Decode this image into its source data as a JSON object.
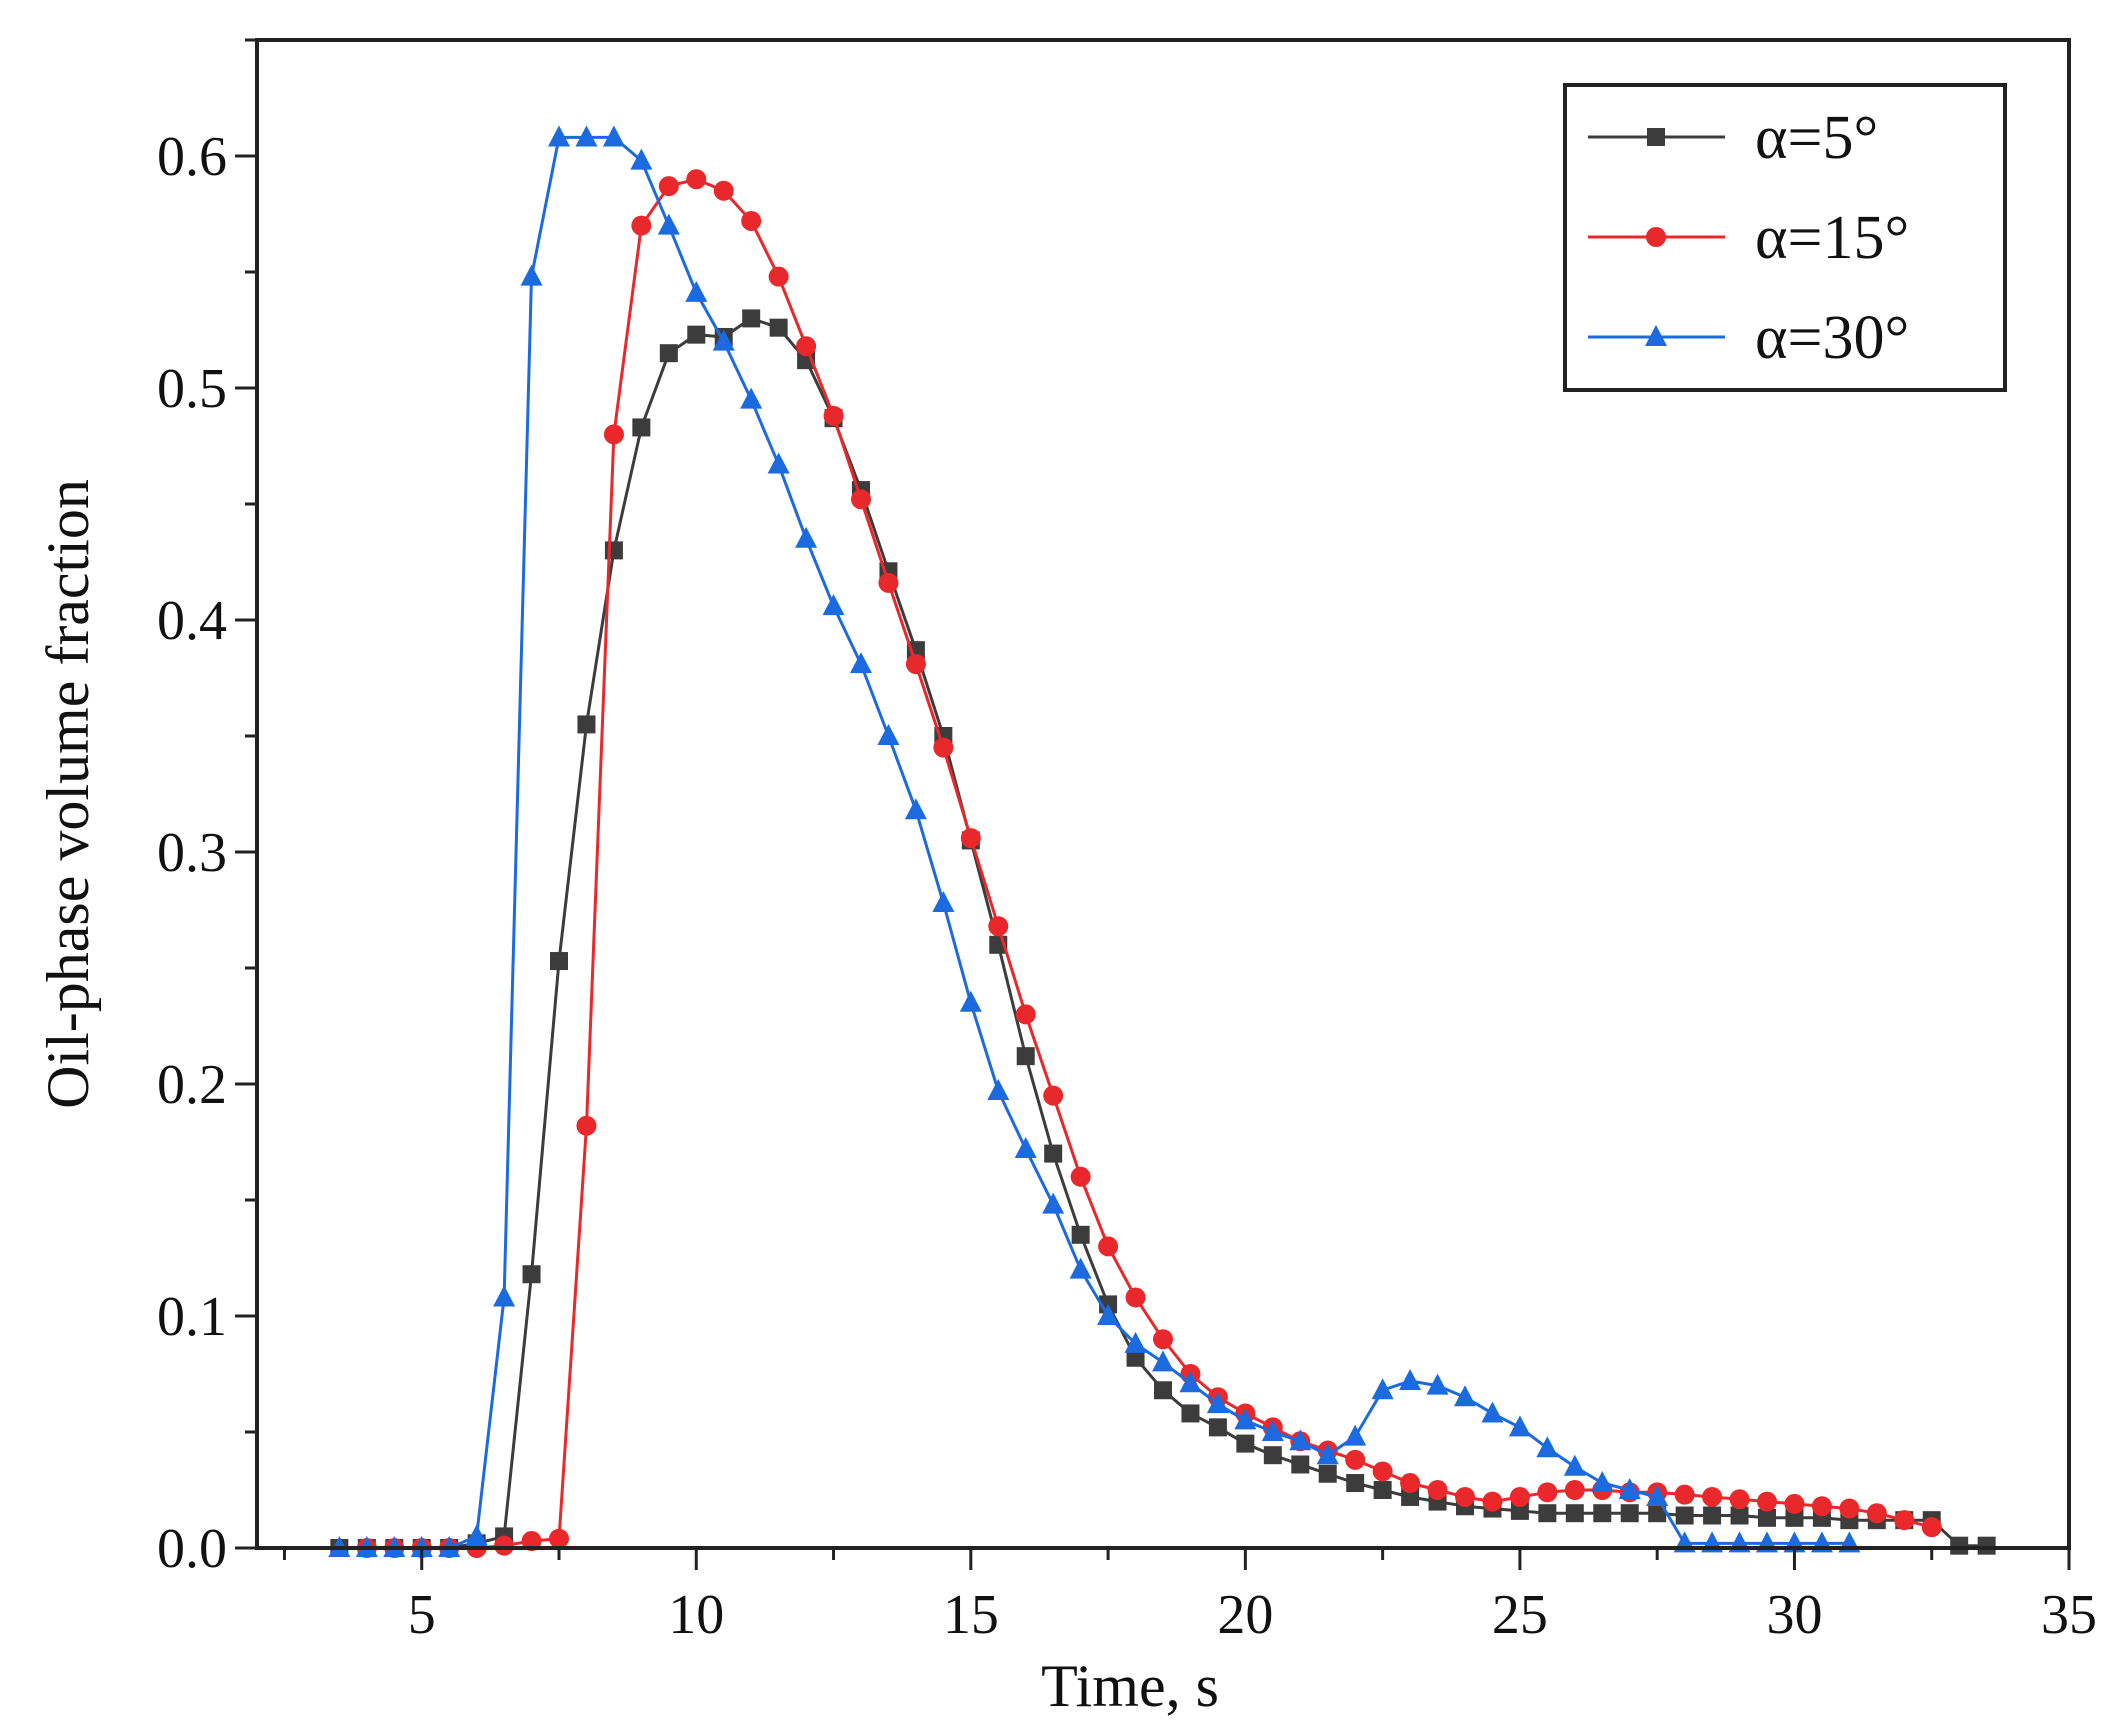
{
  "chart_data": {
    "type": "line",
    "title": "",
    "xlabel": "Time, s",
    "ylabel": "Oil-phase volume fraction",
    "xlim": [
      2,
      35
    ],
    "ylim": [
      0,
      0.65
    ],
    "xticks": [
      5,
      10,
      15,
      20,
      25,
      30,
      35
    ],
    "xtick_labels": [
      "5",
      "10",
      "15",
      "20",
      "25",
      "30",
      "35"
    ],
    "yticks": [
      0,
      0.1,
      0.2,
      0.3,
      0.4,
      0.5,
      0.6
    ],
    "ytick_labels": [
      "0.0",
      "0.1",
      "0.2",
      "0.3",
      "0.4",
      "0.5",
      "0.6"
    ],
    "grid": false,
    "legend_position": "top-right",
    "series": [
      {
        "name": "α=5°",
        "color": "#3c3c3c",
        "marker": "square",
        "x": [
          3.5,
          4,
          4.5,
          5,
          5.5,
          6,
          6.5,
          7,
          7.5,
          8,
          8.5,
          9,
          9.5,
          10,
          10.5,
          11,
          11.5,
          12,
          12.5,
          13,
          13.5,
          14,
          14.5,
          15,
          15.5,
          16,
          16.5,
          17,
          17.5,
          18,
          18.5,
          19,
          19.5,
          20,
          20.5,
          21,
          21.5,
          22,
          22.5,
          23,
          23.5,
          24,
          24.5,
          25,
          25.5,
          26,
          26.5,
          27,
          27.5,
          28,
          28.5,
          29,
          29.5,
          30,
          30.5,
          31,
          31.5,
          32,
          32.5,
          33,
          33.5
        ],
        "y": [
          0.0,
          0.0,
          0.0,
          0.0,
          0.0,
          0.002,
          0.005,
          0.118,
          0.253,
          0.355,
          0.43,
          0.483,
          0.515,
          0.523,
          0.522,
          0.53,
          0.526,
          0.512,
          0.487,
          0.456,
          0.421,
          0.387,
          0.35,
          0.305,
          0.26,
          0.212,
          0.17,
          0.135,
          0.105,
          0.082,
          0.068,
          0.058,
          0.052,
          0.045,
          0.04,
          0.036,
          0.032,
          0.028,
          0.025,
          0.022,
          0.02,
          0.018,
          0.017,
          0.016,
          0.015,
          0.015,
          0.015,
          0.015,
          0.015,
          0.014,
          0.014,
          0.014,
          0.013,
          0.013,
          0.013,
          0.012,
          0.012,
          0.012,
          0.012,
          0.001,
          0.001
        ]
      },
      {
        "name": "α=15°",
        "color": "#e8282b",
        "marker": "circle",
        "x": [
          4,
          4.5,
          5,
          5.5,
          6,
          6.5,
          7,
          7.5,
          8,
          8.5,
          9,
          9.5,
          10,
          10.5,
          11,
          11.5,
          12,
          12.5,
          13,
          13.5,
          14,
          14.5,
          15,
          15.5,
          16,
          16.5,
          17,
          17.5,
          18,
          18.5,
          19,
          19.5,
          20,
          20.5,
          21,
          21.5,
          22,
          22.5,
          23,
          23.5,
          24,
          24.5,
          25,
          25.5,
          26,
          26.5,
          27,
          27.5,
          28,
          28.5,
          29,
          29.5,
          30,
          30.5,
          31,
          31.5,
          32,
          32.5
        ],
        "y": [
          0.0,
          0.0,
          0.0,
          0.0,
          0.0,
          0.001,
          0.003,
          0.004,
          0.182,
          0.48,
          0.57,
          0.587,
          0.59,
          0.585,
          0.572,
          0.548,
          0.518,
          0.488,
          0.452,
          0.416,
          0.381,
          0.345,
          0.306,
          0.268,
          0.23,
          0.195,
          0.16,
          0.13,
          0.108,
          0.09,
          0.075,
          0.065,
          0.058,
          0.052,
          0.046,
          0.042,
          0.038,
          0.033,
          0.028,
          0.025,
          0.022,
          0.02,
          0.022,
          0.024,
          0.025,
          0.025,
          0.024,
          0.024,
          0.023,
          0.022,
          0.021,
          0.02,
          0.019,
          0.018,
          0.017,
          0.015,
          0.012,
          0.009
        ]
      },
      {
        "name": "α=30°",
        "color": "#1b6ae0",
        "marker": "triangle",
        "x": [
          3.5,
          4,
          4.5,
          5,
          5.5,
          6,
          6.5,
          7,
          7.5,
          8,
          8.5,
          9,
          9.5,
          10,
          10.5,
          11,
          11.5,
          12,
          12.5,
          13,
          13.5,
          14,
          14.5,
          15,
          15.5,
          16,
          16.5,
          17,
          17.5,
          18,
          18.5,
          19,
          19.5,
          20,
          20.5,
          21,
          21.5,
          22,
          22.5,
          23,
          23.5,
          24,
          24.5,
          25,
          25.5,
          26,
          26.5,
          27,
          27.5,
          28,
          28.5,
          29,
          29.5,
          30,
          30.5,
          31
        ],
        "y": [
          0.0,
          0.0,
          0.0,
          0.0,
          0.0,
          0.005,
          0.108,
          0.548,
          0.608,
          0.608,
          0.608,
          0.598,
          0.57,
          0.541,
          0.52,
          0.495,
          0.467,
          0.435,
          0.406,
          0.381,
          0.35,
          0.318,
          0.278,
          0.235,
          0.197,
          0.172,
          0.148,
          0.12,
          0.1,
          0.088,
          0.08,
          0.071,
          0.062,
          0.055,
          0.05,
          0.046,
          0.04,
          0.048,
          0.068,
          0.072,
          0.07,
          0.065,
          0.058,
          0.052,
          0.043,
          0.035,
          0.028,
          0.025,
          0.022,
          0.002,
          0.002,
          0.002,
          0.002,
          0.002,
          0.002,
          0.002
        ]
      }
    ]
  }
}
